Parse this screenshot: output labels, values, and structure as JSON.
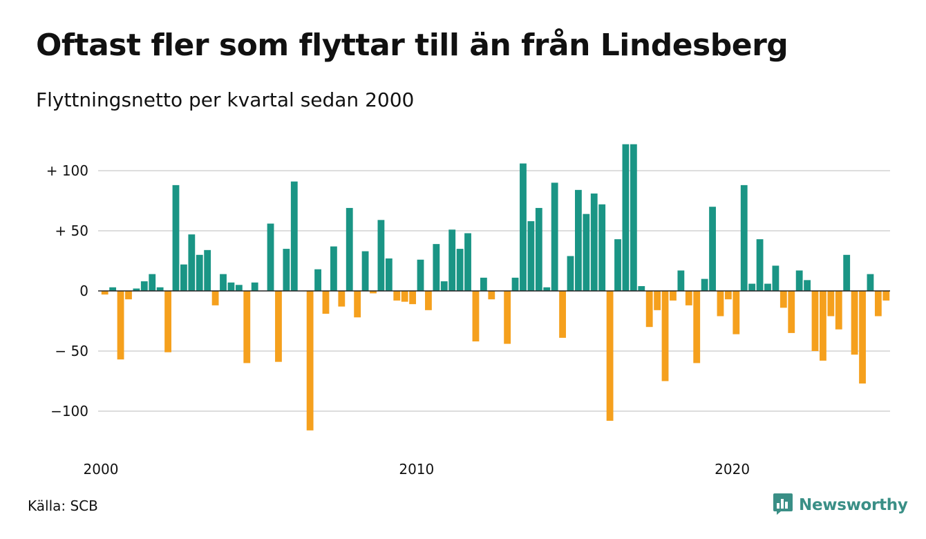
{
  "header": {
    "title": "Oftast fler som flyttar till än från Lindesberg",
    "subtitle": "Flyttningsnetto per kvartal sedan 2000"
  },
  "footer": {
    "source": "Källa: SCB",
    "brand": "Newsworthy",
    "brand_icon": "bar-chart-speech-bubble-icon"
  },
  "colors": {
    "positive": "#1a9585",
    "negative": "#f5a01d",
    "grid": "#dddddd",
    "brand": "#3a8f86"
  },
  "chart_data": {
    "type": "bar",
    "title": "Oftast fler som flyttar till än från Lindesberg",
    "subtitle": "Flyttningsnetto per kvartal sedan 2000",
    "xlabel": "",
    "ylabel": "",
    "ylim": [
      -122,
      124
    ],
    "grid": true,
    "y_ticks": [
      {
        "value": 100,
        "label": "+ 100"
      },
      {
        "value": 50,
        "label": "+  50"
      },
      {
        "value": 0,
        "label": "0"
      },
      {
        "value": -50,
        "label": "− 50"
      },
      {
        "value": -100,
        "label": "−100"
      }
    ],
    "x_ticks": [
      {
        "label": "2000",
        "index": 0
      },
      {
        "label": "2010",
        "index": 40
      },
      {
        "label": "2020",
        "index": 80
      }
    ],
    "start_period": "2000 Q1",
    "frequency": "quarterly",
    "values": [
      -3,
      3,
      -57,
      -7,
      2,
      8,
      14,
      3,
      -51,
      88,
      22,
      47,
      30,
      34,
      -12,
      14,
      7,
      5,
      -60,
      7,
      0,
      56,
      -59,
      35,
      91,
      0,
      -116,
      18,
      -19,
      37,
      -13,
      69,
      -22,
      33,
      -2,
      59,
      27,
      -8,
      -9,
      -11,
      26,
      -16,
      39,
      8,
      51,
      35,
      48,
      -42,
      11,
      -7,
      0,
      -44,
      11,
      106,
      58,
      69,
      3,
      90,
      -39,
      29,
      84,
      64,
      81,
      72,
      -108,
      43,
      122,
      122,
      4,
      -30,
      -16,
      -75,
      -8,
      17,
      -12,
      -60,
      10,
      70,
      -21,
      -7,
      -36,
      88,
      6,
      43,
      6,
      21,
      -14,
      -35,
      17,
      9,
      -50,
      -58,
      -21,
      -32,
      30,
      -53,
      -77,
      14,
      -21,
      -8
    ]
  }
}
